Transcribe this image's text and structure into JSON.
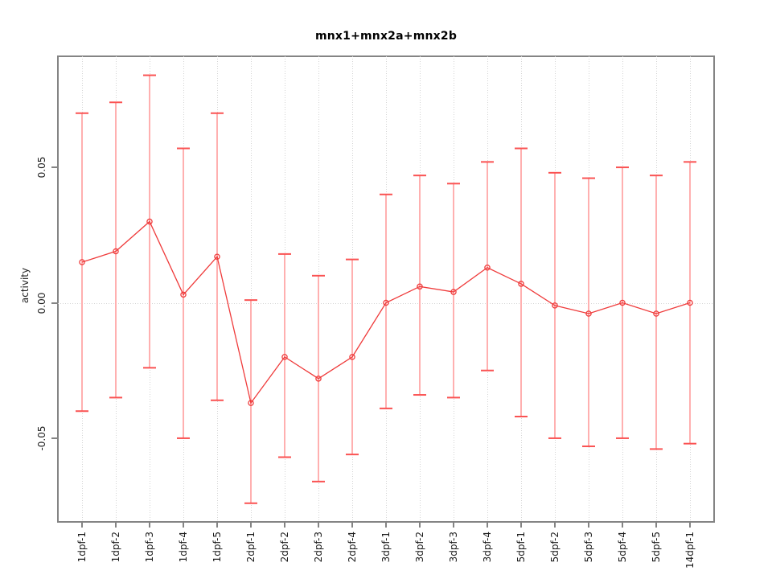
{
  "chart_data": {
    "type": "line",
    "title": "mnx1+mnx2a+mnx2b",
    "xlabel": "",
    "ylabel": "activity",
    "categories": [
      "1dpf-1",
      "1dpf-2",
      "1dpf-3",
      "1dpf-4",
      "1dpf-5",
      "2dpf-1",
      "2dpf-2",
      "2dpf-3",
      "2dpf-4",
      "3dpf-1",
      "3dpf-2",
      "3dpf-3",
      "3dpf-4",
      "5dpf-1",
      "5dpf-2",
      "5dpf-3",
      "5dpf-4",
      "5dpf-5",
      "14dpf-1"
    ],
    "series": [
      {
        "name": "activity",
        "values": [
          0.015,
          0.019,
          0.03,
          0.003,
          0.017,
          -0.037,
          -0.02,
          -0.028,
          -0.02,
          0.0,
          0.006,
          0.004,
          0.013,
          0.007,
          -0.001,
          -0.004,
          0.0,
          -0.004,
          0.0
        ],
        "error_upper": [
          0.07,
          0.074,
          0.084,
          0.057,
          0.07,
          0.001,
          0.018,
          0.01,
          0.016,
          0.04,
          0.047,
          0.044,
          0.052,
          0.057,
          0.048,
          0.046,
          0.05,
          0.047,
          0.052
        ],
        "error_lower": [
          -0.04,
          -0.035,
          -0.024,
          -0.05,
          -0.036,
          -0.074,
          -0.057,
          -0.066,
          -0.056,
          -0.039,
          -0.034,
          -0.035,
          -0.025,
          -0.042,
          -0.05,
          -0.053,
          -0.05,
          -0.054,
          -0.052
        ]
      }
    ],
    "ylim": [
      -0.0806,
      0.091
    ],
    "yticks": {
      "values": [
        0.05,
        0.0,
        -0.05
      ],
      "labels": [
        "0.05",
        "0.00",
        "-0.05"
      ]
    },
    "grid": {
      "vertical_dotted_per_category": true,
      "horizontal_dotted_at_zero": true
    },
    "legend": "none",
    "marker": "open-circle",
    "colors": {
      "line": "#ef3b3b",
      "error_bar": "#ffb0b0",
      "error_cap": "#fa5252",
      "frame": "#848484",
      "grid": "#d4d4d4",
      "text": "#1c1c1c",
      "background": "#ffffff"
    }
  }
}
